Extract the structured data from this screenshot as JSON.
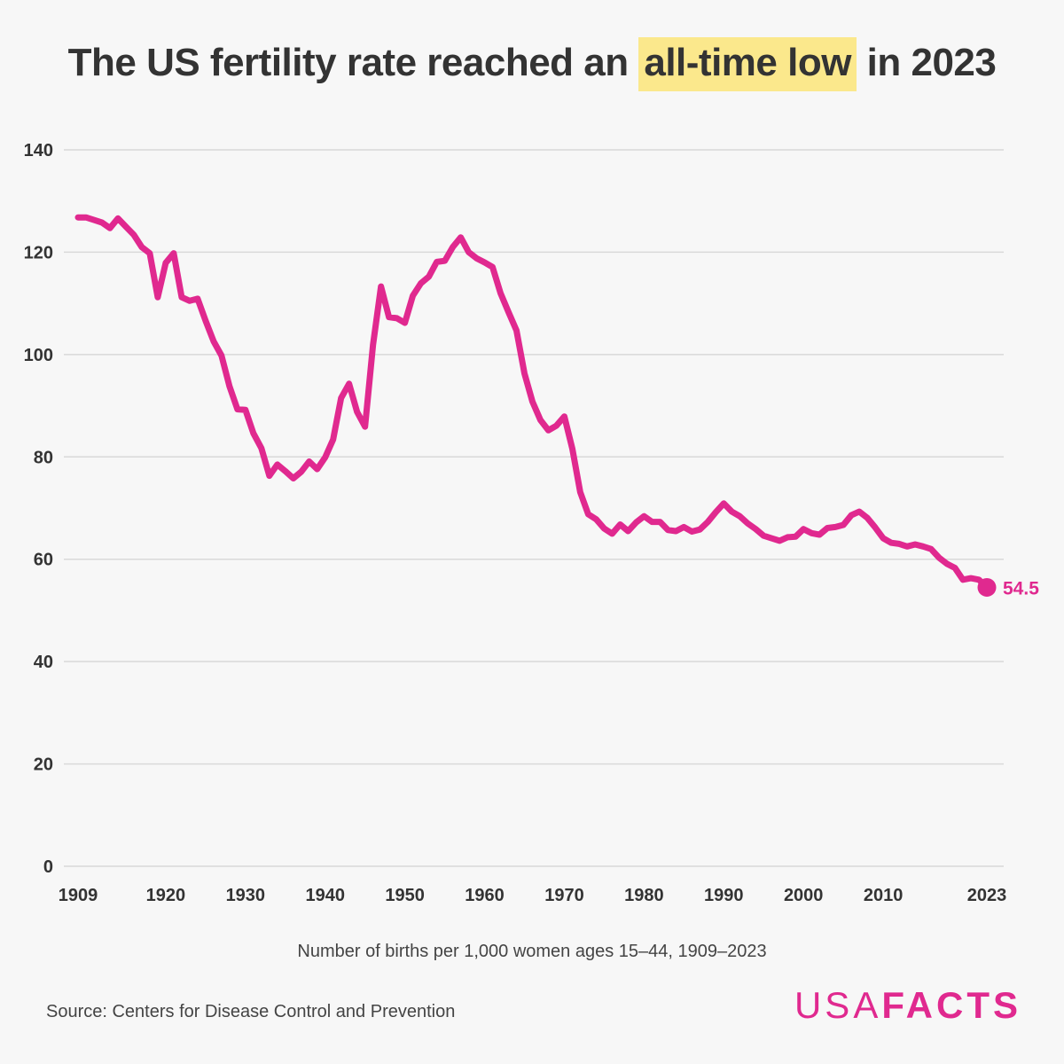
{
  "title": {
    "before": "The US fertility rate reached an ",
    "highlight": "all-time low",
    "after": " in 2023"
  },
  "subtitle": "Number of births per 1,000 women ages 15–44, 1909–2023",
  "source": "Source: Centers for Disease Control and Prevention",
  "logo": {
    "part1": "USA",
    "part2": "FACTS"
  },
  "colors": {
    "line": "#e0298f",
    "highlight": "#fbe88c",
    "grid": "#d9d9d9",
    "background": "#f7f7f7"
  },
  "chart_data": {
    "type": "line",
    "title": "The US fertility rate reached an all-time low in 2023",
    "xlabel": "Number of births per 1,000 women ages 15–44, 1909–2023",
    "ylabel": "",
    "ylim": [
      0,
      140
    ],
    "xlim": [
      1909,
      2023
    ],
    "yticks": [
      0,
      20,
      40,
      60,
      80,
      100,
      120,
      140
    ],
    "xticks": [
      1909,
      1920,
      1930,
      1940,
      1950,
      1960,
      1970,
      1980,
      1990,
      2000,
      2010,
      2023
    ],
    "grid": true,
    "end_label": "54.5",
    "series": [
      {
        "name": "",
        "x": [
          1909,
          1910,
          1911,
          1912,
          1913,
          1914,
          1915,
          1916,
          1917,
          1918,
          1919,
          1920,
          1921,
          1922,
          1923,
          1924,
          1925,
          1926,
          1927,
          1928,
          1929,
          1930,
          1931,
          1932,
          1933,
          1934,
          1935,
          1936,
          1937,
          1938,
          1939,
          1940,
          1941,
          1942,
          1943,
          1944,
          1945,
          1946,
          1947,
          1948,
          1949,
          1950,
          1951,
          1952,
          1953,
          1954,
          1955,
          1956,
          1957,
          1958,
          1959,
          1960,
          1961,
          1962,
          1963,
          1964,
          1965,
          1966,
          1967,
          1968,
          1969,
          1970,
          1971,
          1972,
          1973,
          1974,
          1975,
          1976,
          1977,
          1978,
          1979,
          1980,
          1981,
          1982,
          1983,
          1984,
          1985,
          1986,
          1987,
          1988,
          1989,
          1990,
          1991,
          1992,
          1993,
          1994,
          1995,
          1996,
          1997,
          1998,
          1999,
          2000,
          2001,
          2002,
          2003,
          2004,
          2005,
          2006,
          2007,
          2008,
          2009,
          2010,
          2011,
          2012,
          2013,
          2014,
          2015,
          2016,
          2017,
          2018,
          2019,
          2020,
          2021,
          2022,
          2023
        ],
        "values": [
          126.8,
          126.8,
          126.3,
          125.8,
          124.7,
          126.6,
          125.0,
          123.4,
          121.0,
          119.8,
          111.2,
          117.9,
          119.8,
          111.2,
          110.5,
          110.9,
          106.6,
          102.6,
          99.8,
          93.8,
          89.3,
          89.2,
          84.6,
          81.7,
          76.3,
          78.5,
          77.2,
          75.8,
          77.1,
          79.1,
          77.6,
          79.9,
          83.4,
          91.5,
          94.3,
          88.8,
          85.9,
          101.9,
          113.3,
          107.3,
          107.1,
          106.2,
          111.5,
          113.9,
          115.2,
          118.1,
          118.3,
          121.0,
          122.9,
          120.0,
          118.8,
          118.0,
          117.1,
          112.0,
          108.3,
          104.7,
          96.3,
          90.8,
          87.2,
          85.2,
          86.1,
          87.9,
          81.6,
          73.1,
          68.8,
          67.8,
          66.0,
          65.0,
          66.8,
          65.5,
          67.2,
          68.4,
          67.3,
          67.3,
          65.7,
          65.5,
          66.3,
          65.4,
          65.8,
          67.3,
          69.2,
          70.9,
          69.3,
          68.4,
          67.0,
          65.9,
          64.6,
          64.1,
          63.6,
          64.3,
          64.4,
          65.9,
          65.1,
          64.8,
          66.1,
          66.3,
          66.7,
          68.6,
          69.3,
          68.1,
          66.2,
          64.1,
          63.2,
          63.0,
          62.5,
          62.9,
          62.5,
          62.0,
          60.3,
          59.1,
          58.3,
          56.0,
          56.3,
          56.0,
          54.5
        ]
      }
    ]
  }
}
